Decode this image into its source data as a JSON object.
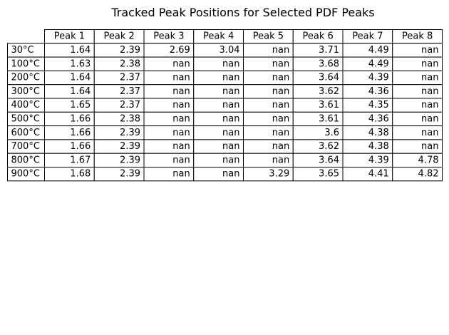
{
  "chart_data": {
    "type": "table",
    "title": "Tracked Peak Positions for Selected PDF Peaks",
    "columns": [
      "Peak 1",
      "Peak 2",
      "Peak 3",
      "Peak 4",
      "Peak 5",
      "Peak 6",
      "Peak 7",
      "Peak 8"
    ],
    "row_labels": [
      "30°C",
      "100°C",
      "200°C",
      "300°C",
      "400°C",
      "500°C",
      "600°C",
      "700°C",
      "800°C",
      "900°C"
    ],
    "cells": [
      [
        "1.64",
        "2.39",
        "2.69",
        "3.04",
        "nan",
        "3.71",
        "4.49",
        "nan"
      ],
      [
        "1.63",
        "2.38",
        "nan",
        "nan",
        "nan",
        "3.68",
        "4.49",
        "nan"
      ],
      [
        "1.64",
        "2.37",
        "nan",
        "nan",
        "nan",
        "3.64",
        "4.39",
        "nan"
      ],
      [
        "1.64",
        "2.37",
        "nan",
        "nan",
        "nan",
        "3.62",
        "4.36",
        "nan"
      ],
      [
        "1.65",
        "2.37",
        "nan",
        "nan",
        "nan",
        "3.61",
        "4.35",
        "nan"
      ],
      [
        "1.66",
        "2.38",
        "nan",
        "nan",
        "nan",
        "3.61",
        "4.36",
        "nan"
      ],
      [
        "1.66",
        "2.39",
        "nan",
        "nan",
        "nan",
        "3.6",
        "4.38",
        "nan"
      ],
      [
        "1.66",
        "2.39",
        "nan",
        "nan",
        "nan",
        "3.62",
        "4.38",
        "nan"
      ],
      [
        "1.67",
        "2.39",
        "nan",
        "nan",
        "nan",
        "3.64",
        "4.39",
        "4.78"
      ],
      [
        "1.68",
        "2.39",
        "nan",
        "nan",
        "3.29",
        "3.65",
        "4.41",
        "4.82"
      ]
    ]
  }
}
